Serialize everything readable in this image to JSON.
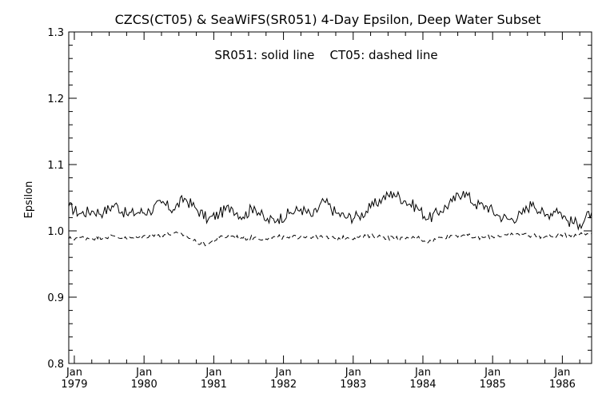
{
  "chart_data": {
    "type": "line",
    "title": "CZCS(CT05) & SeaWiFS(SR051) 4-Day Epsilon, Deep Water Subset",
    "annotation": "SR051: solid line    CT05: dashed line",
    "xlabel": "",
    "ylabel": "Epsilon",
    "ylim": [
      0.8,
      1.3
    ],
    "xlim": [
      1978.92,
      1986.42
    ],
    "yticks": [
      {
        "value": 0.8,
        "label": "0.8"
      },
      {
        "value": 0.9,
        "label": "0.9"
      },
      {
        "value": 1.0,
        "label": "1.0"
      },
      {
        "value": 1.1,
        "label": "1.1"
      },
      {
        "value": 1.2,
        "label": "1.2"
      },
      {
        "value": 1.3,
        "label": "1.3"
      }
    ],
    "xticks": [
      {
        "value": 1979,
        "label1": "Jan",
        "label2": "1979"
      },
      {
        "value": 1980,
        "label1": "Jan",
        "label2": "1980"
      },
      {
        "value": 1981,
        "label1": "Jan",
        "label2": "1981"
      },
      {
        "value": 1982,
        "label1": "Jan",
        "label2": "1982"
      },
      {
        "value": 1983,
        "label1": "Jan",
        "label2": "1983"
      },
      {
        "value": 1984,
        "label1": "Jan",
        "label2": "1984"
      },
      {
        "value": 1985,
        "label1": "Jan",
        "label2": "1985"
      },
      {
        "value": 1986,
        "label1": "Jan",
        "label2": "1986"
      }
    ],
    "series": [
      {
        "name": "SR051",
        "style": "solid",
        "color": "#000000",
        "x": [
          1978.92,
          1979.08,
          1979.25,
          1979.42,
          1979.58,
          1979.75,
          1979.92,
          1980.08,
          1980.25,
          1980.42,
          1980.58,
          1980.75,
          1980.92,
          1981.08,
          1981.25,
          1981.42,
          1981.58,
          1981.75,
          1981.92,
          1982.08,
          1982.25,
          1982.42,
          1982.58,
          1982.75,
          1982.92,
          1983.08,
          1983.25,
          1983.42,
          1983.58,
          1983.75,
          1983.92,
          1984.08,
          1984.25,
          1984.42,
          1984.58,
          1984.75,
          1984.92,
          1985.08,
          1985.25,
          1985.42,
          1985.58,
          1985.75,
          1985.92,
          1986.08,
          1986.25,
          1986.42
        ],
        "y": [
          1.037,
          1.026,
          1.03,
          1.028,
          1.04,
          1.025,
          1.028,
          1.03,
          1.042,
          1.032,
          1.049,
          1.033,
          1.017,
          1.026,
          1.036,
          1.021,
          1.037,
          1.015,
          1.018,
          1.026,
          1.033,
          1.022,
          1.045,
          1.027,
          1.02,
          1.022,
          1.035,
          1.049,
          1.057,
          1.045,
          1.035,
          1.018,
          1.03,
          1.044,
          1.06,
          1.04,
          1.037,
          1.023,
          1.017,
          1.025,
          1.043,
          1.022,
          1.034,
          1.015,
          1.01,
          1.028
        ]
      },
      {
        "name": "CT05",
        "style": "dashed",
        "color": "#000000",
        "x": [
          1978.92,
          1979.08,
          1979.25,
          1979.42,
          1979.58,
          1979.75,
          1979.92,
          1980.08,
          1980.25,
          1980.42,
          1980.58,
          1980.75,
          1980.92,
          1981.08,
          1981.25,
          1981.42,
          1981.58,
          1981.75,
          1981.92,
          1982.08,
          1982.25,
          1982.42,
          1982.58,
          1982.75,
          1982.92,
          1983.08,
          1983.25,
          1983.42,
          1983.58,
          1983.75,
          1983.92,
          1984.08,
          1984.25,
          1984.42,
          1984.58,
          1984.75,
          1984.92,
          1985.08,
          1985.25,
          1985.42,
          1985.58,
          1985.75,
          1985.92,
          1986.08,
          1986.25,
          1986.42
        ],
        "y": [
          0.988,
          0.99,
          0.989,
          0.991,
          0.992,
          0.988,
          0.99,
          0.993,
          0.994,
          0.996,
          0.994,
          0.983,
          0.98,
          0.99,
          0.992,
          0.989,
          0.99,
          0.988,
          0.991,
          0.989,
          0.992,
          0.991,
          0.99,
          0.988,
          0.99,
          0.99,
          0.992,
          0.991,
          0.989,
          0.988,
          0.99,
          0.983,
          0.99,
          0.993,
          0.994,
          0.99,
          0.99,
          0.993,
          0.993,
          0.995,
          0.993,
          0.991,
          0.992,
          0.994,
          0.995,
          0.996
        ]
      }
    ]
  }
}
